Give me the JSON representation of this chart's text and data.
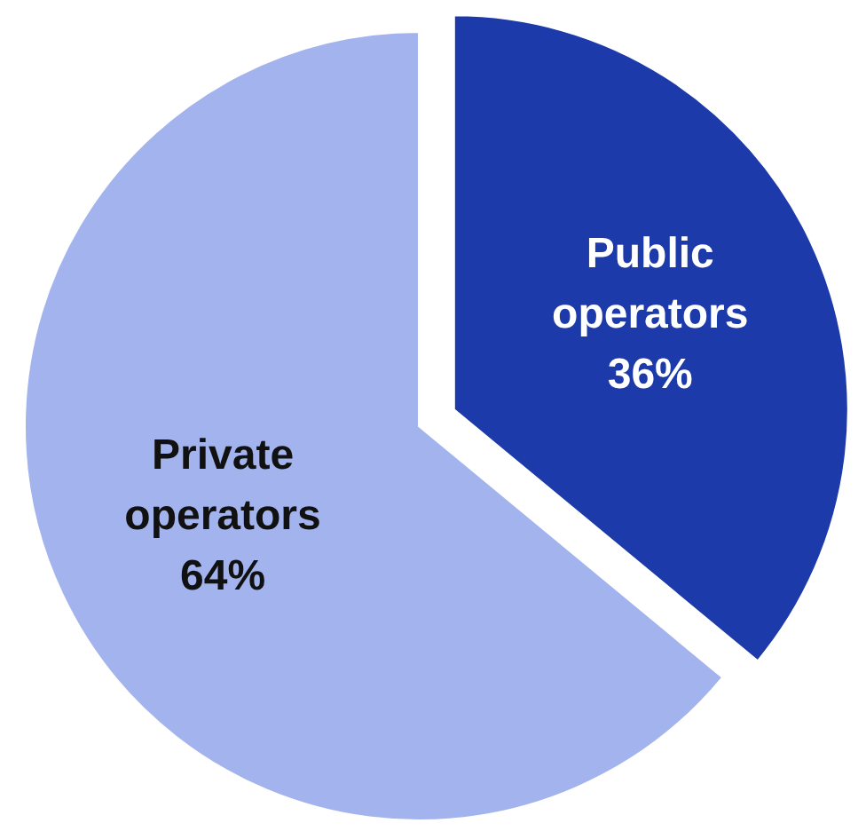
{
  "chart_data": {
    "type": "pie",
    "categories": [
      "Public operators",
      "Private operators"
    ],
    "values": [
      36,
      64
    ],
    "colors": [
      "#1c3aa9",
      "#a3b3ee"
    ],
    "value_labels": [
      "36%",
      "64%"
    ]
  }
}
